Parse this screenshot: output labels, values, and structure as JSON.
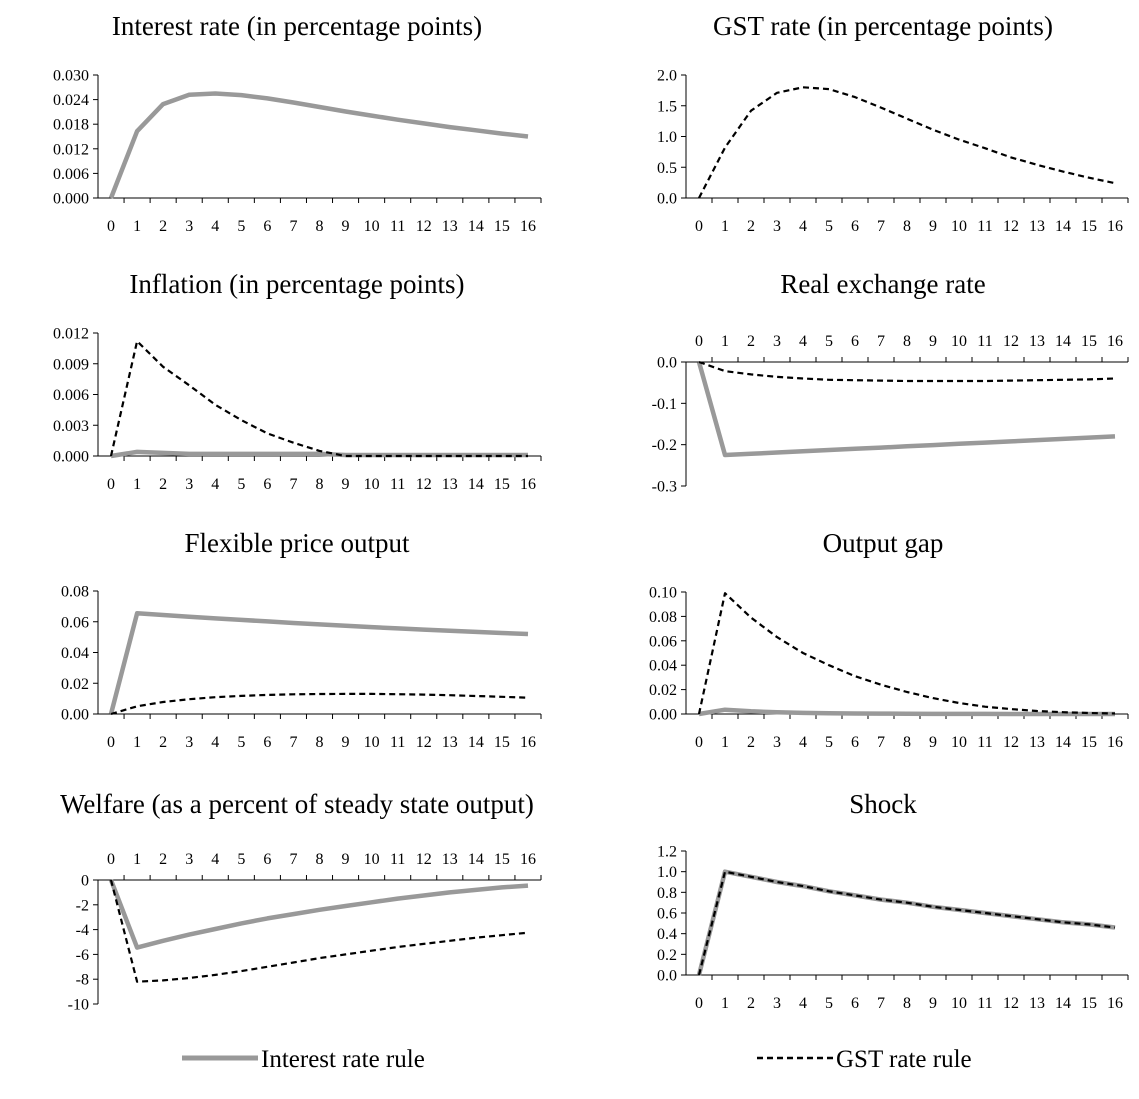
{
  "chart_data": [
    {
      "type": "line",
      "title": "Interest rate (in percentage points)",
      "x": [
        0,
        1,
        2,
        3,
        4,
        5,
        6,
        7,
        8,
        9,
        10,
        11,
        12,
        13,
        14,
        15,
        16
      ],
      "x_ticks": [
        "0",
        "1",
        "2",
        "3",
        "4",
        "5",
        "6",
        "7",
        "8",
        "9",
        "10",
        "11",
        "12",
        "13",
        "14",
        "15",
        "16"
      ],
      "ylim": [
        0,
        0.03
      ],
      "y_ticks": [
        0,
        0.006,
        0.012,
        0.018,
        0.024,
        0.03
      ],
      "y_tick_labels": [
        "0.000",
        "0.006",
        "0.012",
        "0.018",
        "0.024",
        "0.030"
      ],
      "x_axis_position": "bottom",
      "series": [
        {
          "values": [
            0,
            0.0163,
            0.0229,
            0.0252,
            0.0255,
            0.0251,
            0.0243,
            0.0233,
            0.0222,
            0.0211,
            0.0201,
            0.0191,
            0.0182,
            0.0173,
            0.0165,
            0.0157,
            0.015
          ],
          "style": "solid",
          "color": "#999999"
        }
      ]
    },
    {
      "type": "line",
      "title": "GST rate (in percentage points)",
      "x": [
        0,
        1,
        2,
        3,
        4,
        5,
        6,
        7,
        8,
        9,
        10,
        11,
        12,
        13,
        14,
        15,
        16
      ],
      "x_ticks": [
        "0",
        "1",
        "2",
        "3",
        "4",
        "5",
        "6",
        "7",
        "8",
        "9",
        "10",
        "11",
        "12",
        "13",
        "14",
        "15",
        "16"
      ],
      "ylim": [
        0,
        2.0
      ],
      "y_ticks": [
        0,
        0.5,
        1.0,
        1.5,
        2.0
      ],
      "y_tick_labels": [
        "0.0",
        "0.5",
        "1.0",
        "1.5",
        "2.0"
      ],
      "x_axis_position": "bottom",
      "series": [
        {
          "values": [
            0,
            0.82,
            1.42,
            1.71,
            1.8,
            1.77,
            1.64,
            1.47,
            1.29,
            1.11,
            0.95,
            0.81,
            0.66,
            0.54,
            0.43,
            0.33,
            0.24
          ],
          "style": "dashed",
          "color": "#000000"
        }
      ]
    },
    {
      "type": "line",
      "title": "Inflation (in percentage points)",
      "x": [
        0,
        1,
        2,
        3,
        4,
        5,
        6,
        7,
        8,
        9,
        10,
        11,
        12,
        13,
        14,
        15,
        16
      ],
      "x_ticks": [
        "0",
        "1",
        "2",
        "3",
        "4",
        "5",
        "6",
        "7",
        "8",
        "9",
        "10",
        "11",
        "12",
        "13",
        "14",
        "15",
        "16"
      ],
      "ylim": [
        0,
        0.012
      ],
      "y_ticks": [
        0,
        0.003,
        0.006,
        0.009,
        0.012
      ],
      "y_tick_labels": [
        "0.000",
        "0.003",
        "0.006",
        "0.009",
        "0.012"
      ],
      "x_axis_position": "bottom",
      "series": [
        {
          "values": [
            0,
            0.0004,
            0.0003,
            0.0002,
            0.0002,
            0.0002,
            0.0002,
            0.0002,
            0.0002,
            0.0001,
            0.0001,
            0.0001,
            0.0001,
            0.0001,
            0.0001,
            0.0001,
            0.0001
          ],
          "style": "solid",
          "color": "#999999"
        },
        {
          "values": [
            0,
            0.0112,
            0.0087,
            0.0069,
            0.005,
            0.0035,
            0.0022,
            0.0013,
            0.0005,
            0.0,
            0.0,
            0.0,
            0.0,
            0.0,
            0.0,
            0.0,
            0.0
          ],
          "style": "dashed",
          "color": "#000000"
        }
      ]
    },
    {
      "type": "line",
      "title": "Real exchange rate",
      "x": [
        0,
        1,
        2,
        3,
        4,
        5,
        6,
        7,
        8,
        9,
        10,
        11,
        12,
        13,
        14,
        15,
        16
      ],
      "x_ticks": [
        "0",
        "1",
        "2",
        "3",
        "4",
        "5",
        "6",
        "7",
        "8",
        "9",
        "10",
        "11",
        "12",
        "13",
        "14",
        "15",
        "16"
      ],
      "ylim": [
        -0.3,
        0
      ],
      "y_ticks": [
        -0.3,
        -0.2,
        -0.1,
        0
      ],
      "y_tick_labels": [
        "-0.3",
        "-0.2",
        "-0.1",
        "0.0"
      ],
      "x_axis_position": "top",
      "series": [
        {
          "values": [
            0,
            -0.225,
            -0.222,
            -0.219,
            -0.216,
            -0.213,
            -0.21,
            -0.207,
            -0.204,
            -0.201,
            -0.198,
            -0.195,
            -0.192,
            -0.189,
            -0.186,
            -0.183,
            -0.18
          ],
          "style": "solid",
          "color": "#999999"
        },
        {
          "values": [
            0,
            -0.022,
            -0.03,
            -0.036,
            -0.04,
            -0.043,
            -0.044,
            -0.045,
            -0.046,
            -0.046,
            -0.046,
            -0.046,
            -0.045,
            -0.044,
            -0.043,
            -0.042,
            -0.04
          ],
          "style": "dashed",
          "color": "#000000"
        }
      ]
    },
    {
      "type": "line",
      "title": "Flexible price output",
      "x": [
        0,
        1,
        2,
        3,
        4,
        5,
        6,
        7,
        8,
        9,
        10,
        11,
        12,
        13,
        14,
        15,
        16
      ],
      "x_ticks": [
        "0",
        "1",
        "2",
        "3",
        "4",
        "5",
        "6",
        "7",
        "8",
        "9",
        "10",
        "11",
        "12",
        "13",
        "14",
        "15",
        "16"
      ],
      "ylim": [
        0,
        0.08
      ],
      "y_ticks": [
        0,
        0.02,
        0.04,
        0.06,
        0.08
      ],
      "y_tick_labels": [
        "0.00",
        "0.02",
        "0.04",
        "0.06",
        "0.08"
      ],
      "x_axis_position": "bottom",
      "series": [
        {
          "values": [
            0,
            0.0655,
            0.0644,
            0.0633,
            0.0622,
            0.0612,
            0.0602,
            0.0592,
            0.0583,
            0.0574,
            0.0565,
            0.0557,
            0.0549,
            0.0541,
            0.0534,
            0.0527,
            0.052
          ],
          "style": "solid",
          "color": "#999999"
        },
        {
          "values": [
            0,
            0.005,
            0.0078,
            0.0096,
            0.0109,
            0.0118,
            0.0124,
            0.0128,
            0.013,
            0.0131,
            0.0131,
            0.0129,
            0.0126,
            0.0122,
            0.0117,
            0.0112,
            0.0106
          ],
          "style": "dashed",
          "color": "#000000"
        }
      ]
    },
    {
      "type": "line",
      "title": "Output gap",
      "x": [
        0,
        1,
        2,
        3,
        4,
        5,
        6,
        7,
        8,
        9,
        10,
        11,
        12,
        13,
        14,
        15,
        16
      ],
      "x_ticks": [
        "0",
        "1",
        "2",
        "3",
        "4",
        "5",
        "6",
        "7",
        "8",
        "9",
        "10",
        "11",
        "12",
        "13",
        "14",
        "15",
        "16"
      ],
      "ylim": [
        0,
        0.1
      ],
      "y_ticks": [
        0,
        0.02,
        0.04,
        0.06,
        0.08,
        0.1
      ],
      "y_tick_labels": [
        "0.00",
        "0.02",
        "0.04",
        "0.06",
        "0.08",
        "0.10"
      ],
      "x_axis_position": "bottom",
      "series": [
        {
          "values": [
            0,
            0.0035,
            0.0022,
            0.0014,
            0.0009,
            0.0006,
            0.0004,
            0.0003,
            0.0002,
            0.0001,
            0.0001,
            0.0001,
            0.0,
            0.0,
            0.0,
            0.0,
            0.0
          ],
          "style": "solid",
          "color": "#999999"
        },
        {
          "values": [
            0,
            0.099,
            0.079,
            0.063,
            0.05,
            0.04,
            0.031,
            0.024,
            0.018,
            0.013,
            0.009,
            0.006,
            0.004,
            0.0025,
            0.0015,
            0.0008,
            0.0004
          ],
          "style": "dashed",
          "color": "#000000"
        }
      ]
    },
    {
      "type": "line",
      "title": "Welfare (as a percent of steady state output)",
      "x": [
        0,
        1,
        2,
        3,
        4,
        5,
        6,
        7,
        8,
        9,
        10,
        11,
        12,
        13,
        14,
        15,
        16
      ],
      "x_ticks": [
        "0",
        "1",
        "2",
        "3",
        "4",
        "5",
        "6",
        "7",
        "8",
        "9",
        "10",
        "11",
        "12",
        "13",
        "14",
        "15",
        "16"
      ],
      "ylim": [
        -10,
        0
      ],
      "y_ticks": [
        -10,
        -8,
        -6,
        -4,
        -2,
        0
      ],
      "y_tick_labels": [
        "-10",
        "-8",
        "-6",
        "-4",
        "-2",
        "0"
      ],
      "x_axis_position": "top",
      "series": [
        {
          "values": [
            0,
            -5.45,
            -4.9,
            -4.4,
            -3.95,
            -3.5,
            -3.1,
            -2.75,
            -2.4,
            -2.1,
            -1.8,
            -1.5,
            -1.25,
            -1.0,
            -0.8,
            -0.6,
            -0.45
          ],
          "style": "solid",
          "color": "#999999"
        },
        {
          "values": [
            0,
            -8.2,
            -8.1,
            -7.9,
            -7.65,
            -7.35,
            -7.0,
            -6.65,
            -6.3,
            -6.0,
            -5.7,
            -5.4,
            -5.15,
            -4.9,
            -4.65,
            -4.45,
            -4.25
          ],
          "style": "dashed",
          "color": "#000000"
        }
      ]
    },
    {
      "type": "line",
      "title": "Shock",
      "x": [
        0,
        1,
        2,
        3,
        4,
        5,
        6,
        7,
        8,
        9,
        10,
        11,
        12,
        13,
        14,
        15,
        16
      ],
      "x_ticks": [
        "0",
        "1",
        "2",
        "3",
        "4",
        "5",
        "6",
        "7",
        "8",
        "9",
        "10",
        "11",
        "12",
        "13",
        "14",
        "15",
        "16"
      ],
      "ylim": [
        0,
        1.2
      ],
      "y_ticks": [
        0,
        0.2,
        0.4,
        0.6,
        0.8,
        1.0,
        1.2
      ],
      "y_tick_labels": [
        "0.0",
        "0.2",
        "0.4",
        "0.6",
        "0.8",
        "1.0",
        "1.2"
      ],
      "x_axis_position": "bottom",
      "series": [
        {
          "values": [
            0,
            1.0,
            0.95,
            0.9,
            0.86,
            0.81,
            0.77,
            0.73,
            0.7,
            0.66,
            0.63,
            0.6,
            0.57,
            0.54,
            0.51,
            0.49,
            0.46
          ],
          "style": "solid",
          "color": "#999999"
        },
        {
          "values": [
            0,
            1.0,
            0.95,
            0.9,
            0.86,
            0.81,
            0.77,
            0.73,
            0.7,
            0.66,
            0.63,
            0.6,
            0.57,
            0.54,
            0.51,
            0.49,
            0.46
          ],
          "style": "dashed",
          "color": "#000000"
        }
      ]
    }
  ],
  "legend": {
    "items": [
      {
        "label": "Interest rate rule",
        "style": "solid",
        "color": "#999999"
      },
      {
        "label": "GST rate rule",
        "style": "dashed",
        "color": "#000000"
      }
    ]
  }
}
